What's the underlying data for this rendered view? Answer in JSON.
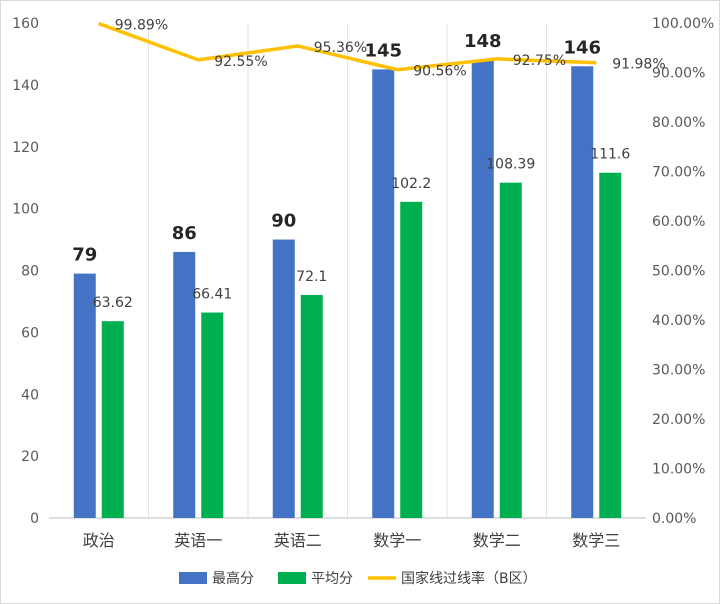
{
  "chart_data": {
    "type": "bar",
    "categories": [
      "政治",
      "英语一",
      "英语二",
      "数学一",
      "数学二",
      "数学三"
    ],
    "series": [
      {
        "name": "最高分",
        "kind": "bar",
        "axis": "left",
        "color": "#4472c4",
        "values": [
          79,
          86,
          90,
          145,
          148,
          146
        ]
      },
      {
        "name": "平均分",
        "kind": "bar",
        "axis": "left",
        "color": "#00b050",
        "values": [
          63.62,
          66.41,
          72.1,
          102.2,
          108.39,
          111.6
        ]
      },
      {
        "name": "国家线过线率（B区）",
        "kind": "line",
        "axis": "right",
        "color": "#ffc000",
        "values": [
          99.89,
          92.55,
          95.36,
          90.56,
          92.75,
          91.98
        ]
      }
    ],
    "bar_labels_max": [
      "79",
      "86",
      "90",
      "145",
      "148",
      "146"
    ],
    "bar_labels_avg": [
      "63.62",
      "66.41",
      "72.1",
      "102.2",
      "108.39",
      "111.6"
    ],
    "line_labels": [
      "99.89%",
      "92.55%",
      "95.36%",
      "90.56%",
      "92.75%",
      "91.98%"
    ],
    "y_left": {
      "lim": [
        0,
        160
      ],
      "ticks": [
        "0",
        "20",
        "40",
        "60",
        "80",
        "100",
        "120",
        "140",
        "160"
      ]
    },
    "y_right": {
      "lim": [
        0,
        100
      ],
      "ticks": [
        "0.00%",
        "10.00%",
        "20.00%",
        "30.00%",
        "40.00%",
        "50.00%",
        "60.00%",
        "70.00%",
        "80.00%",
        "90.00%",
        "100.00%"
      ]
    },
    "grid": true,
    "grid_direction": "vertical",
    "legend_position": "bottom"
  }
}
